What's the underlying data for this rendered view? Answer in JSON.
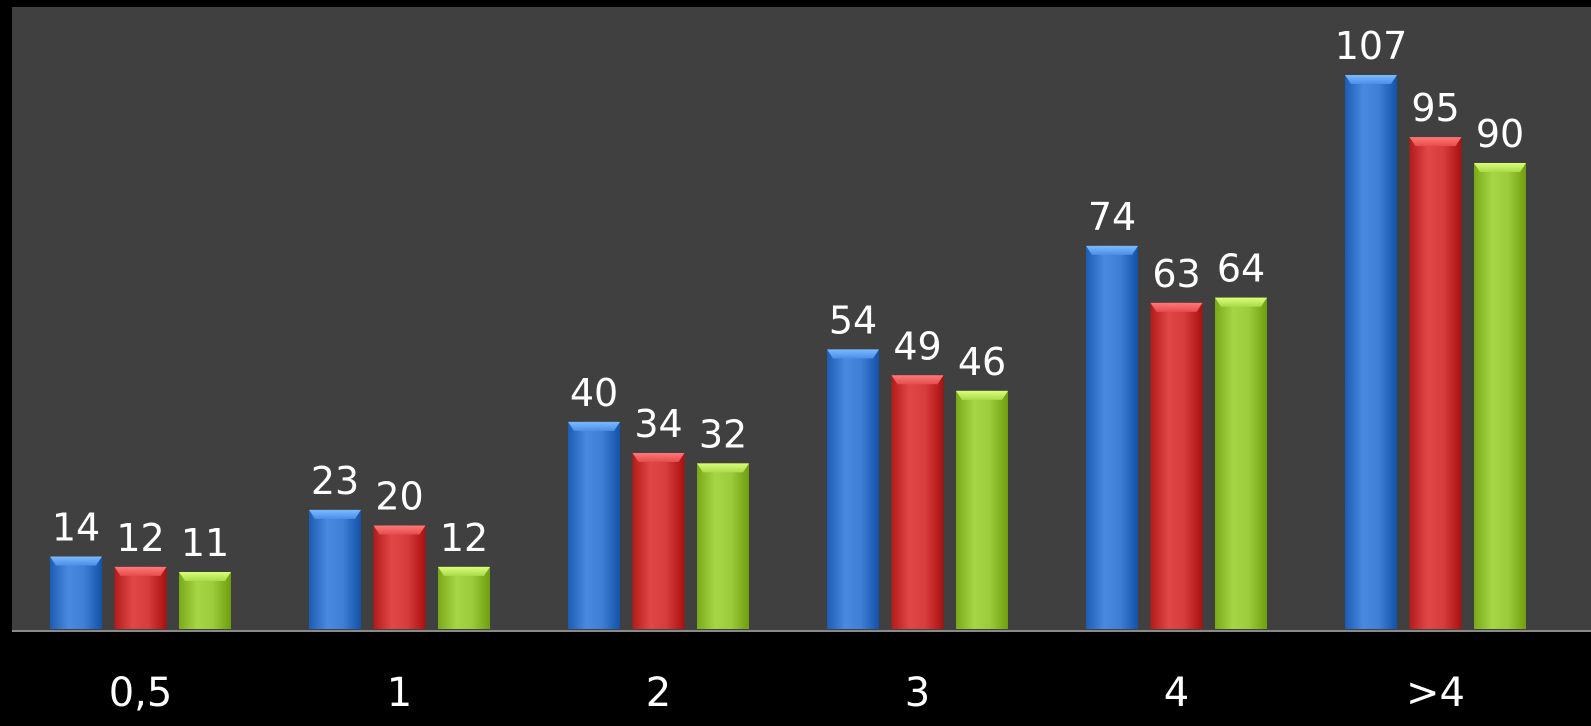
{
  "chart_data": {
    "type": "bar",
    "title": "",
    "xlabel": "",
    "ylabel": "",
    "categories": [
      "0,5",
      "1",
      "2",
      "3",
      "4",
      ">4"
    ],
    "series": [
      {
        "color": "#3f7fd6",
        "values": [
          14,
          23,
          40,
          54,
          74,
          107
        ]
      },
      {
        "color": "#d63d3d",
        "values": [
          12,
          20,
          34,
          49,
          63,
          95
        ]
      },
      {
        "color": "#9ccb3c",
        "values": [
          11,
          12,
          32,
          46,
          64,
          90
        ]
      }
    ],
    "ylim": [
      0,
      120
    ],
    "grid": false,
    "legend": "none",
    "plot_background": "#404040",
    "page_background": "#000000"
  }
}
